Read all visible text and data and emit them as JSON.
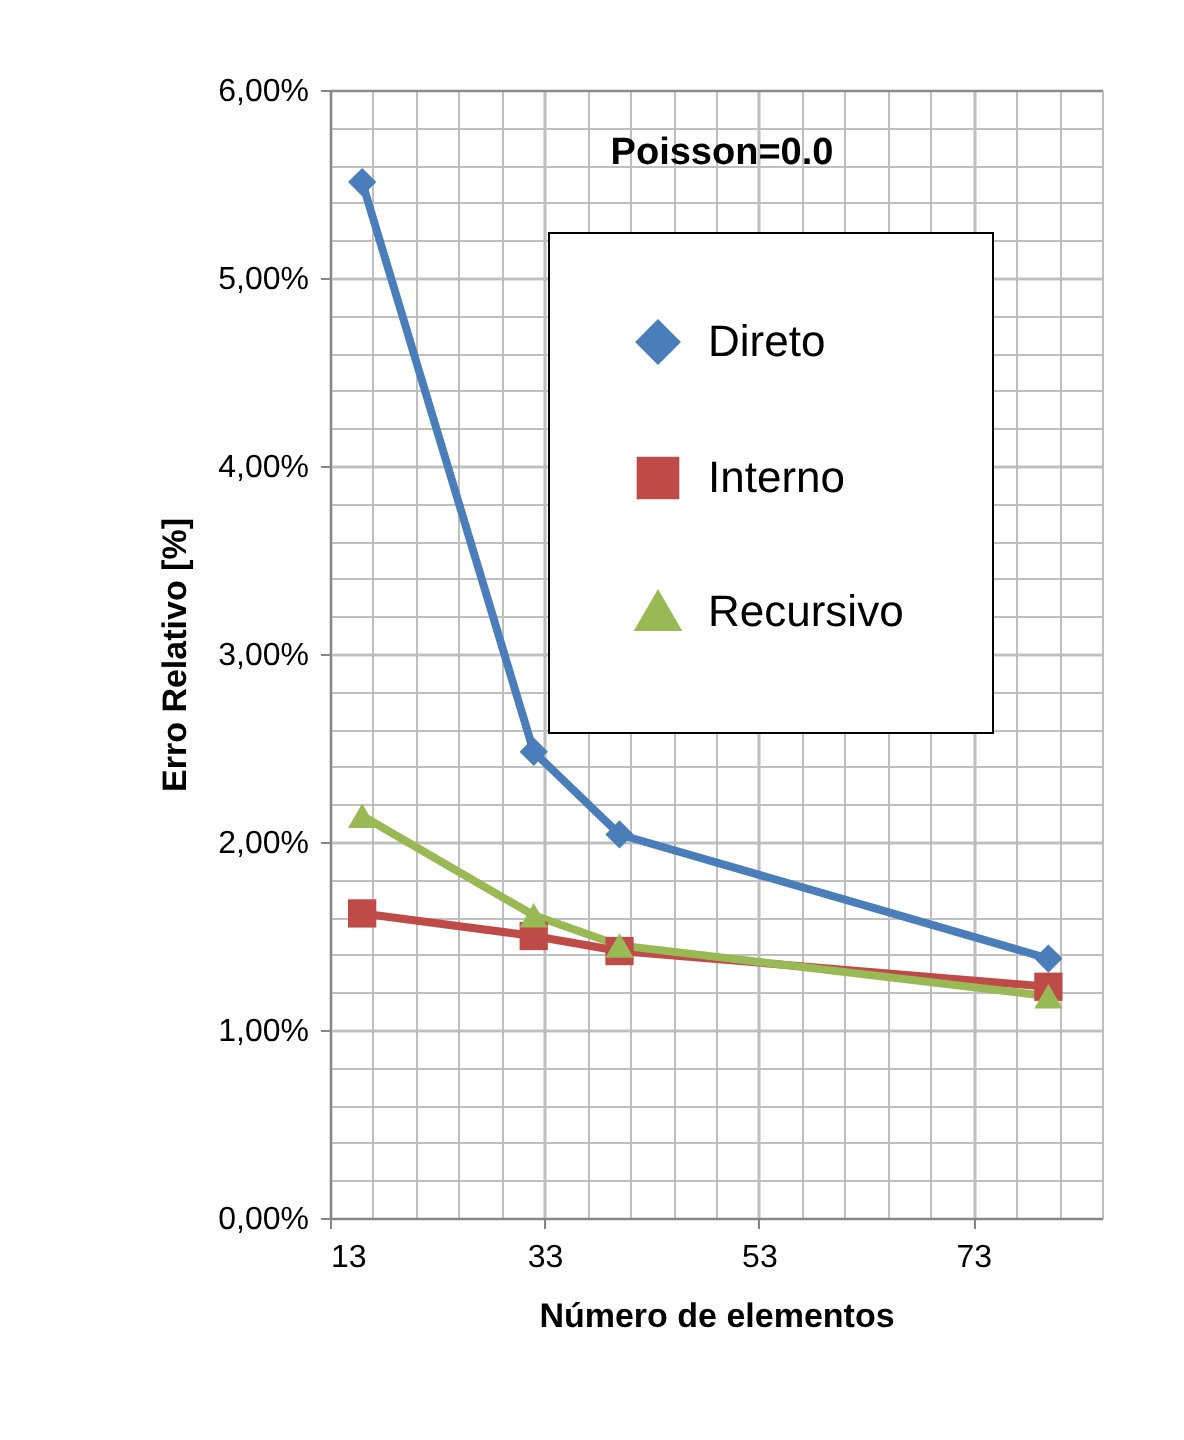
{
  "chart_data": {
    "type": "line",
    "xlabel": "Número de elementos",
    "ylabel": "Erro Relativo [%]",
    "annotations": [
      "Poisson=0.0"
    ],
    "x": [
      16,
      32,
      40,
      80
    ],
    "series": [
      {
        "name": "Direto",
        "color": "#4a7ebb",
        "marker": "diamond",
        "values": [
          5.51,
          2.48,
          2.04,
          1.38
        ]
      },
      {
        "name": "Interno",
        "color": "#be4b48",
        "marker": "square",
        "values": [
          1.62,
          1.5,
          1.42,
          1.23
        ]
      },
      {
        "name": "Recursivo",
        "color": "#98b954",
        "marker": "triangle",
        "values": [
          2.14,
          1.61,
          1.45,
          1.18
        ]
      }
    ],
    "xlim": [
      13,
      85
    ],
    "xticks": [
      13,
      33,
      53,
      73
    ],
    "ylim": [
      0,
      6
    ],
    "yticks": [
      {
        "value": 0,
        "label": "0,00%"
      },
      {
        "value": 1,
        "label": "1,00%"
      },
      {
        "value": 2,
        "label": "2,00%"
      },
      {
        "value": 3,
        "label": "3,00%"
      },
      {
        "value": 4,
        "label": "4,00%"
      },
      {
        "value": 5,
        "label": "5,00%"
      },
      {
        "value": 6,
        "label": "6,00%"
      }
    ],
    "grid": true,
    "legend": "top right",
    "line_style": "solid"
  }
}
